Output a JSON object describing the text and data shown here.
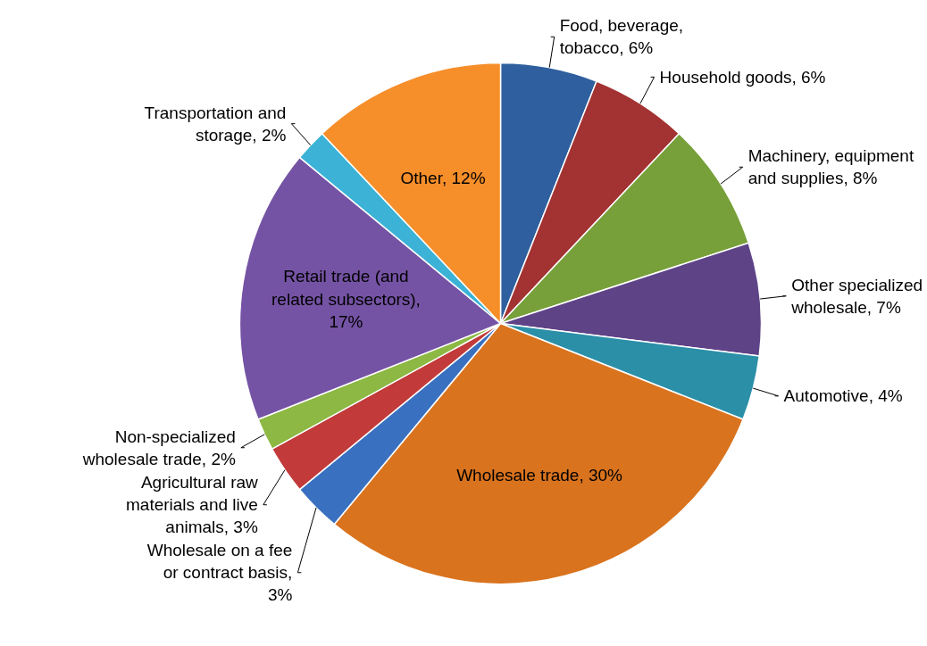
{
  "chart_data": {
    "type": "pie",
    "categories": [
      "Food, beverage, tobacco, 6%",
      "Household goods, 6%",
      "Machinery, equipment and supplies, 8%",
      "Other specialized wholesale, 7%",
      "Automotive, 4%",
      "Wholesale trade, 30%",
      "Wholesale on a fee or contract basis, 3%",
      "Agricultural raw materials and live animals, 3%",
      "Non-specialized wholesale trade, 2%",
      "Retail trade (and related subsectors), 17%",
      "Transportation and storage, 2%",
      "Other, 12%"
    ],
    "values": [
      6,
      6,
      8,
      7,
      4,
      30,
      3,
      3,
      2,
      17,
      2,
      12
    ],
    "colors": [
      "#2f5f9e",
      "#a33232",
      "#77a03a",
      "#5e4387",
      "#2b8fa8",
      "#d9731e",
      "#3a70c0",
      "#c23a3a",
      "#8cb843",
      "#7553a4",
      "#3bb2d6",
      "#f68e2a"
    ]
  }
}
